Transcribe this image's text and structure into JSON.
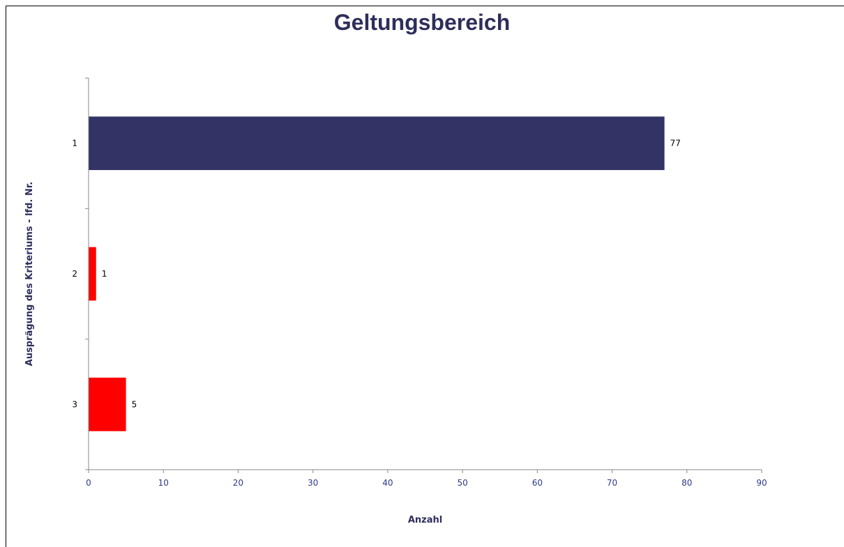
{
  "chart_data": {
    "type": "bar",
    "orientation": "horizontal",
    "title": "Geltungsbereich",
    "xlabel": "Anzahl",
    "ylabel": "Ausprägung des Kriteriums - lfd. Nr.",
    "categories": [
      "1",
      "2",
      "3"
    ],
    "values": [
      77,
      1,
      5
    ],
    "bar_colors": [
      "#333366",
      "#ff0000",
      "#ff0000"
    ],
    "xlim": [
      0,
      90
    ],
    "x_ticks": [
      0,
      10,
      20,
      30,
      40,
      50,
      60,
      70,
      80,
      90
    ],
    "grid": false,
    "legend": "none",
    "data_labels": true
  }
}
